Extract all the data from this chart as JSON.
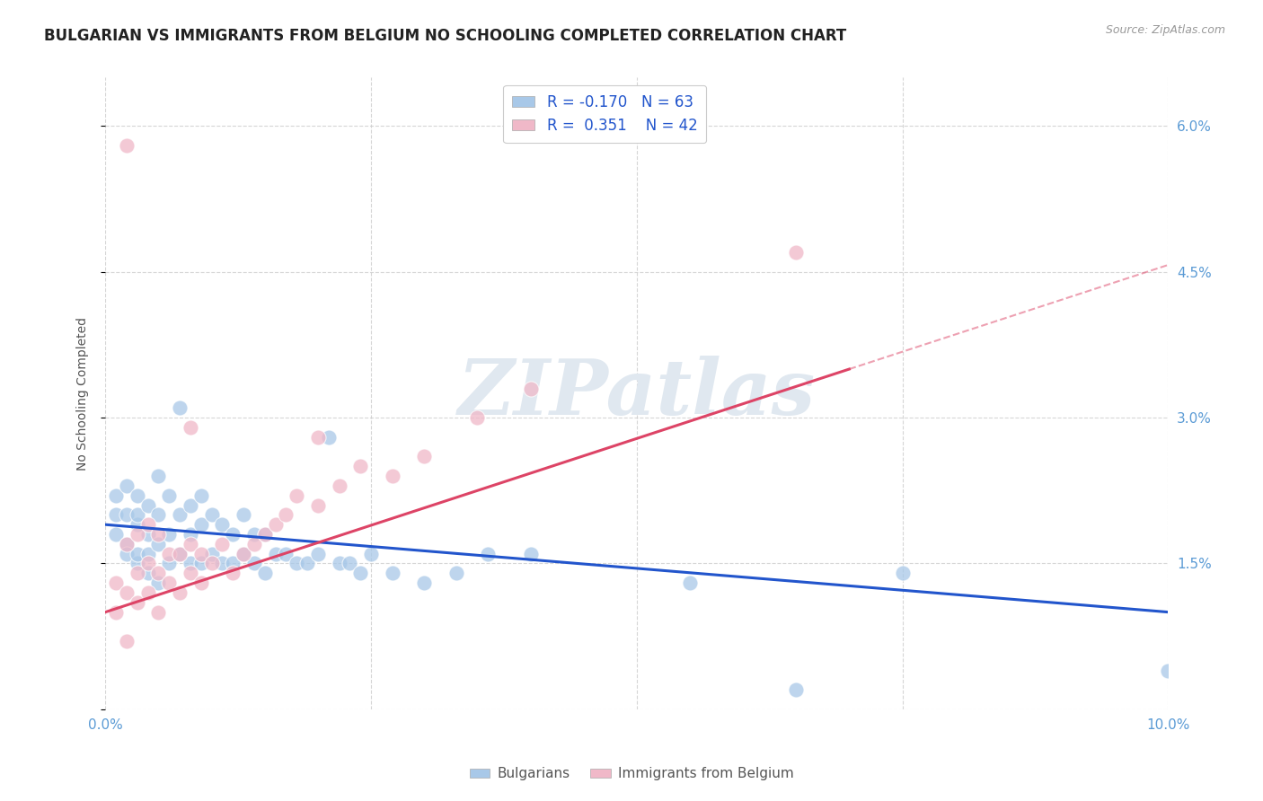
{
  "title": "BULGARIAN VS IMMIGRANTS FROM BELGIUM NO SCHOOLING COMPLETED CORRELATION CHART",
  "source": "Source: ZipAtlas.com",
  "ylabel": "No Schooling Completed",
  "xlim": [
    0.0,
    0.1
  ],
  "ylim": [
    0.0,
    0.065
  ],
  "yticks": [
    0.0,
    0.015,
    0.03,
    0.045,
    0.06
  ],
  "ytick_labels": [
    "",
    "1.5%",
    "3.0%",
    "4.5%",
    "6.0%"
  ],
  "xticks": [
    0.0,
    0.025,
    0.05,
    0.075,
    0.1
  ],
  "xtick_labels": [
    "0.0%",
    "",
    "",
    "",
    "10.0%"
  ],
  "bg_color": "#ffffff",
  "grid_color": "#cccccc",
  "blue_color": "#a8c8e8",
  "pink_color": "#f0b8c8",
  "blue_line_color": "#2255cc",
  "pink_line_color": "#dd4466",
  "watermark_color": "#e0e8f0",
  "legend_R_blue": "-0.170",
  "legend_N_blue": "63",
  "legend_R_pink": "0.351",
  "legend_N_pink": "42",
  "legend_label_blue": "Bulgarians",
  "legend_label_pink": "Immigrants from Belgium",
  "title_fontsize": 12,
  "axis_label_fontsize": 10,
  "tick_fontsize": 11,
  "blue_scatter_x": [
    0.001,
    0.001,
    0.001,
    0.002,
    0.002,
    0.002,
    0.002,
    0.003,
    0.003,
    0.003,
    0.003,
    0.003,
    0.004,
    0.004,
    0.004,
    0.004,
    0.005,
    0.005,
    0.005,
    0.005,
    0.006,
    0.006,
    0.006,
    0.007,
    0.007,
    0.007,
    0.008,
    0.008,
    0.008,
    0.009,
    0.009,
    0.009,
    0.01,
    0.01,
    0.011,
    0.011,
    0.012,
    0.012,
    0.013,
    0.013,
    0.014,
    0.014,
    0.015,
    0.015,
    0.016,
    0.017,
    0.018,
    0.019,
    0.02,
    0.021,
    0.022,
    0.023,
    0.024,
    0.025,
    0.027,
    0.03,
    0.033,
    0.036,
    0.04,
    0.055,
    0.065,
    0.075,
    0.1
  ],
  "blue_scatter_y": [
    0.02,
    0.018,
    0.022,
    0.017,
    0.02,
    0.023,
    0.016,
    0.015,
    0.019,
    0.022,
    0.016,
    0.02,
    0.014,
    0.018,
    0.021,
    0.016,
    0.013,
    0.017,
    0.02,
    0.024,
    0.015,
    0.018,
    0.022,
    0.016,
    0.02,
    0.031,
    0.015,
    0.018,
    0.021,
    0.015,
    0.019,
    0.022,
    0.016,
    0.02,
    0.015,
    0.019,
    0.015,
    0.018,
    0.016,
    0.02,
    0.015,
    0.018,
    0.014,
    0.018,
    0.016,
    0.016,
    0.015,
    0.015,
    0.016,
    0.028,
    0.015,
    0.015,
    0.014,
    0.016,
    0.014,
    0.013,
    0.014,
    0.016,
    0.016,
    0.013,
    0.002,
    0.014,
    0.004
  ],
  "pink_scatter_x": [
    0.001,
    0.001,
    0.002,
    0.002,
    0.002,
    0.003,
    0.003,
    0.003,
    0.004,
    0.004,
    0.004,
    0.005,
    0.005,
    0.005,
    0.006,
    0.006,
    0.007,
    0.007,
    0.008,
    0.008,
    0.009,
    0.009,
    0.01,
    0.011,
    0.012,
    0.013,
    0.014,
    0.015,
    0.016,
    0.017,
    0.018,
    0.02,
    0.022,
    0.024,
    0.027,
    0.03,
    0.035,
    0.04,
    0.065,
    0.02,
    0.008,
    0.002
  ],
  "pink_scatter_y": [
    0.01,
    0.013,
    0.012,
    0.017,
    0.058,
    0.011,
    0.014,
    0.018,
    0.012,
    0.015,
    0.019,
    0.01,
    0.014,
    0.018,
    0.013,
    0.016,
    0.012,
    0.016,
    0.014,
    0.017,
    0.013,
    0.016,
    0.015,
    0.017,
    0.014,
    0.016,
    0.017,
    0.018,
    0.019,
    0.02,
    0.022,
    0.021,
    0.023,
    0.025,
    0.024,
    0.026,
    0.03,
    0.033,
    0.047,
    0.028,
    0.029,
    0.007
  ]
}
